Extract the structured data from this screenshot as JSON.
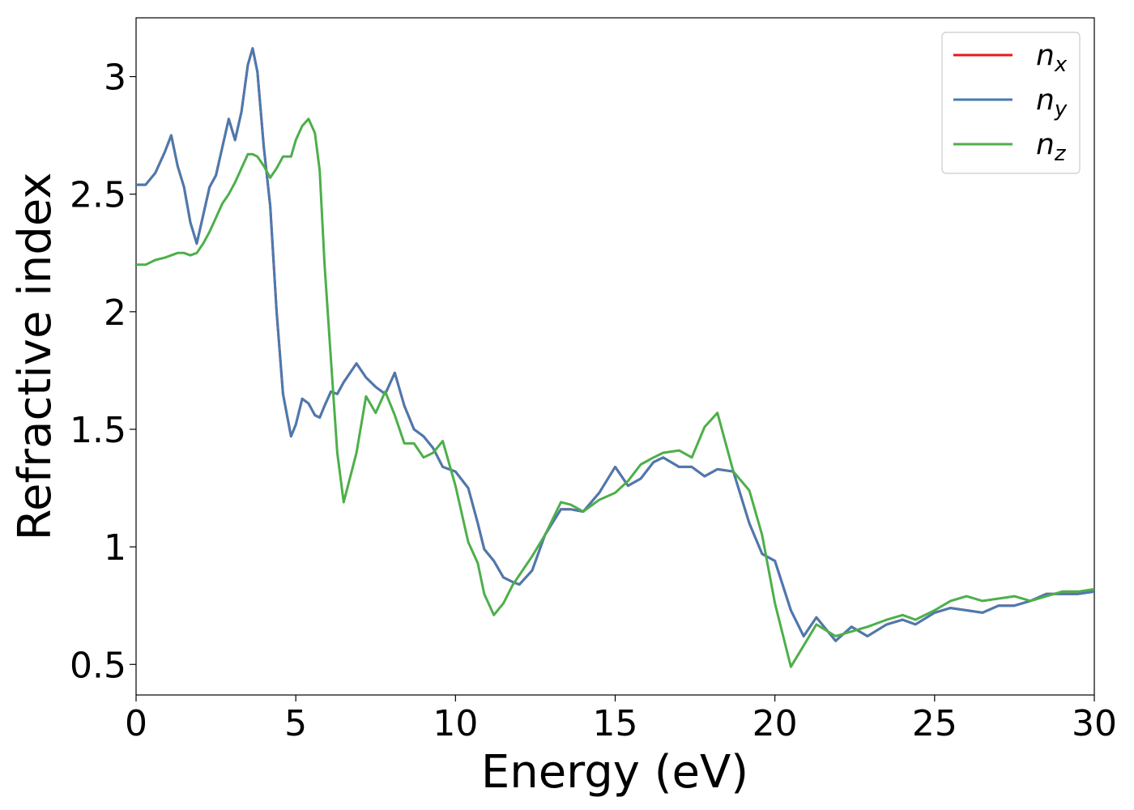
{
  "chart_data": {
    "type": "line",
    "xlabel": "Energy (eV)",
    "ylabel": "Refractive index",
    "x": [
      0,
      0.3,
      0.6,
      0.9,
      1.1,
      1.3,
      1.5,
      1.7,
      1.9,
      2.1,
      2.3,
      2.5,
      2.7,
      2.9,
      3.1,
      3.3,
      3.5,
      3.65,
      3.8,
      4.0,
      4.2,
      4.4,
      4.6,
      4.85,
      5.0,
      5.2,
      5.4,
      5.6,
      5.75,
      5.9,
      6.1,
      6.3,
      6.5,
      6.9,
      7.2,
      7.5,
      7.8,
      8.1,
      8.4,
      8.7,
      9.0,
      9.3,
      9.6,
      10.0,
      10.4,
      10.7,
      10.9,
      11.2,
      11.5,
      11.8,
      12.0,
      12.4,
      12.8,
      13.3,
      13.6,
      14.0,
      14.5,
      15.0,
      15.4,
      15.8,
      16.2,
      16.5,
      17.0,
      17.4,
      17.8,
      18.2,
      18.7,
      19.2,
      19.6,
      20.0,
      20.5,
      20.9,
      21.3,
      21.9,
      22.4,
      22.9,
      23.5,
      24.0,
      24.4,
      25.0,
      25.5,
      26.0,
      26.5,
      27.0,
      27.5,
      28.0,
      28.5,
      29.0,
      29.5,
      30
    ],
    "series": [
      {
        "name": "nx",
        "color": "#e41a1c",
        "values": [
          2.54,
          2.54,
          2.59,
          2.68,
          2.75,
          2.62,
          2.53,
          2.38,
          2.29,
          2.41,
          2.53,
          2.58,
          2.7,
          2.82,
          2.73,
          2.85,
          3.05,
          3.12,
          3.02,
          2.7,
          2.45,
          2.0,
          1.65,
          1.47,
          1.52,
          1.63,
          1.61,
          1.56,
          1.55,
          1.6,
          1.66,
          1.65,
          1.7,
          1.78,
          1.72,
          1.68,
          1.65,
          1.74,
          1.6,
          1.5,
          1.47,
          1.42,
          1.34,
          1.32,
          1.25,
          1.1,
          0.99,
          0.94,
          0.87,
          0.85,
          0.84,
          0.9,
          1.05,
          1.16,
          1.16,
          1.15,
          1.23,
          1.34,
          1.26,
          1.29,
          1.36,
          1.38,
          1.34,
          1.34,
          1.3,
          1.33,
          1.32,
          1.1,
          0.97,
          0.94,
          0.73,
          0.62,
          0.7,
          0.6,
          0.66,
          0.62,
          0.67,
          0.69,
          0.67,
          0.72,
          0.74,
          0.73,
          0.72,
          0.75,
          0.75,
          0.77,
          0.8,
          0.8,
          0.8,
          0.81
        ]
      },
      {
        "name": "ny",
        "color": "#4a7ab0",
        "values": [
          2.54,
          2.54,
          2.59,
          2.68,
          2.75,
          2.62,
          2.53,
          2.38,
          2.29,
          2.41,
          2.53,
          2.58,
          2.7,
          2.82,
          2.73,
          2.85,
          3.05,
          3.12,
          3.02,
          2.7,
          2.45,
          2.0,
          1.65,
          1.47,
          1.52,
          1.63,
          1.61,
          1.56,
          1.55,
          1.6,
          1.66,
          1.65,
          1.7,
          1.78,
          1.72,
          1.68,
          1.65,
          1.74,
          1.6,
          1.5,
          1.47,
          1.42,
          1.34,
          1.32,
          1.25,
          1.1,
          0.99,
          0.94,
          0.87,
          0.85,
          0.84,
          0.9,
          1.05,
          1.16,
          1.16,
          1.15,
          1.23,
          1.34,
          1.26,
          1.29,
          1.36,
          1.38,
          1.34,
          1.34,
          1.3,
          1.33,
          1.32,
          1.1,
          0.97,
          0.94,
          0.73,
          0.62,
          0.7,
          0.6,
          0.66,
          0.62,
          0.67,
          0.69,
          0.67,
          0.72,
          0.74,
          0.73,
          0.72,
          0.75,
          0.75,
          0.77,
          0.8,
          0.8,
          0.8,
          0.81
        ]
      },
      {
        "name": "nz",
        "color": "#4daf4a",
        "values": [
          2.2,
          2.2,
          2.22,
          2.23,
          2.24,
          2.25,
          2.25,
          2.24,
          2.25,
          2.29,
          2.34,
          2.4,
          2.46,
          2.5,
          2.55,
          2.61,
          2.67,
          2.67,
          2.66,
          2.62,
          2.57,
          2.61,
          2.66,
          2.66,
          2.73,
          2.79,
          2.82,
          2.76,
          2.6,
          2.2,
          1.8,
          1.4,
          1.19,
          1.4,
          1.64,
          1.57,
          1.66,
          1.56,
          1.44,
          1.44,
          1.38,
          1.4,
          1.45,
          1.26,
          1.02,
          0.93,
          0.8,
          0.71,
          0.76,
          0.84,
          0.88,
          0.96,
          1.05,
          1.19,
          1.18,
          1.15,
          1.2,
          1.23,
          1.28,
          1.35,
          1.38,
          1.4,
          1.41,
          1.38,
          1.51,
          1.57,
          1.32,
          1.24,
          1.05,
          0.76,
          0.49,
          0.58,
          0.67,
          0.62,
          0.64,
          0.66,
          0.69,
          0.71,
          0.69,
          0.73,
          0.77,
          0.79,
          0.77,
          0.78,
          0.79,
          0.77,
          0.79,
          0.81,
          0.81,
          0.82
        ]
      }
    ],
    "xlim": [
      0,
      30
    ],
    "xticks": [
      0,
      5,
      10,
      15,
      20,
      25,
      30
    ],
    "ylim": [
      0.37,
      3.25
    ],
    "yticks": [
      0.5,
      1.0,
      1.5,
      2.0,
      2.5,
      3.0
    ],
    "grid": false,
    "legend": "upper right"
  }
}
